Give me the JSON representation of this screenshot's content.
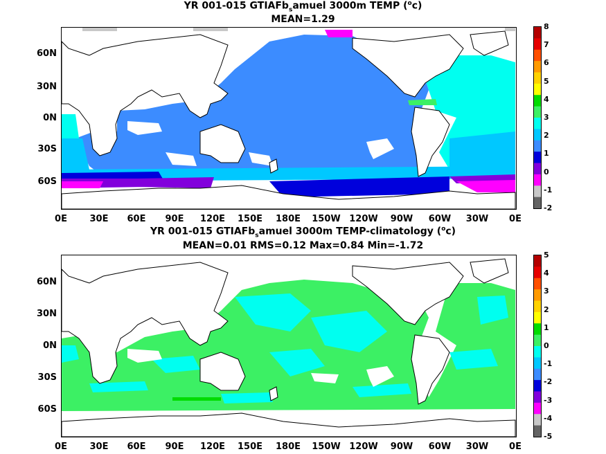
{
  "panel1": {
    "title_pre": "YR 001-015 GTIAFb",
    "title_sub": "s",
    "title_post": "amuel 3000m TEMP (",
    "title_sup": "o",
    "title_end": "c)",
    "stats": "MEAN=1.29",
    "colorbar_labels": [
      "8",
      "7",
      "6",
      "5",
      "4",
      "3",
      "2",
      "1",
      "0",
      "-1",
      "-2"
    ],
    "colorbar_colors": [
      "#b40000",
      "#e60000",
      "#ff5000",
      "#ff9a00",
      "#ffd200",
      "#ffff00",
      "#00dc00",
      "#3cf064",
      "#00fff0",
      "#00c8ff",
      "#3c8cff",
      "#0000dc",
      "#8200dc",
      "#ff00ff",
      "#c8c8c8",
      "#646464"
    ]
  },
  "panel2": {
    "title_pre": "YR 001-015 GTIAFb",
    "title_sub": "s",
    "title_post": "amuel 3000m TEMP-climatology (",
    "title_sup": "o",
    "title_end": "c)",
    "stats": "MEAN=0.01   RMS=0.12   Max=0.84   Min=-1.72",
    "colorbar_labels": [
      "5",
      "4",
      "3",
      "2",
      "1",
      "0",
      "-1",
      "-2",
      "-3",
      "-4",
      "-5"
    ],
    "colorbar_colors": [
      "#b40000",
      "#e60000",
      "#ff5000",
      "#ff9a00",
      "#ffd200",
      "#ffff00",
      "#00dc00",
      "#3cf064",
      "#00fff0",
      "#00c8ff",
      "#3c8cff",
      "#0000dc",
      "#8200dc",
      "#ff00ff",
      "#c8c8c8",
      "#646464"
    ]
  },
  "axes": {
    "lat_labels": [
      "60N",
      "30N",
      "0N",
      "30S",
      "60S"
    ],
    "lon_labels": [
      "0E",
      "30E",
      "60E",
      "90E",
      "120E",
      "150E",
      "180E",
      "150W",
      "120W",
      "90W",
      "60W",
      "30W",
      "0E"
    ]
  }
}
